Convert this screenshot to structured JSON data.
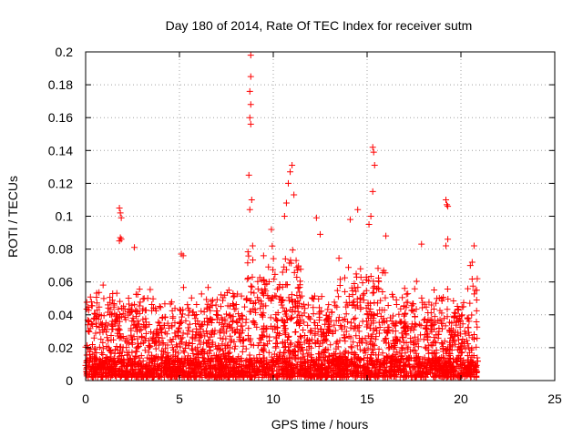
{
  "chart_data": {
    "type": "scatter",
    "title": "Day 180 of 2014, Rate Of TEC Index for receiver sutm",
    "xlabel": "GPS time / hours",
    "ylabel": "ROTI / TECUs",
    "xlim": [
      0,
      25
    ],
    "ylim": [
      0,
      0.2
    ],
    "xticks": [
      "0",
      "5",
      "10",
      "15",
      "20",
      "25"
    ],
    "yticks": [
      "0",
      "0.02",
      "0.04",
      "0.06",
      "0.08",
      "0.1",
      "0.12",
      "0.14",
      "0.16",
      "0.18",
      "0.2"
    ],
    "grid": true,
    "marker": "+",
    "color": "#ff0000",
    "data_extent_hours": [
      0,
      20.9
    ],
    "series": [
      {
        "description_points": [
          {
            "x": 1.8,
            "y": 0.105
          },
          {
            "x": 1.85,
            "y": 0.102
          },
          {
            "x": 1.9,
            "y": 0.099
          },
          {
            "x": 1.85,
            "y": 0.087
          },
          {
            "x": 1.9,
            "y": 0.086
          },
          {
            "x": 1.8,
            "y": 0.085
          },
          {
            "x": 2.6,
            "y": 0.081
          },
          {
            "x": 5.1,
            "y": 0.077
          },
          {
            "x": 5.2,
            "y": 0.076
          },
          {
            "x": 8.8,
            "y": 0.198
          },
          {
            "x": 8.8,
            "y": 0.185
          },
          {
            "x": 8.75,
            "y": 0.176
          },
          {
            "x": 8.8,
            "y": 0.168
          },
          {
            "x": 8.75,
            "y": 0.16
          },
          {
            "x": 8.8,
            "y": 0.156
          },
          {
            "x": 8.7,
            "y": 0.125
          },
          {
            "x": 8.85,
            "y": 0.11
          },
          {
            "x": 8.75,
            "y": 0.104
          },
          {
            "x": 8.9,
            "y": 0.082
          },
          {
            "x": 9.9,
            "y": 0.092
          },
          {
            "x": 11.0,
            "y": 0.131
          },
          {
            "x": 10.9,
            "y": 0.127
          },
          {
            "x": 10.8,
            "y": 0.12
          },
          {
            "x": 11.1,
            "y": 0.113
          },
          {
            "x": 10.7,
            "y": 0.108
          },
          {
            "x": 10.6,
            "y": 0.1
          },
          {
            "x": 12.3,
            "y": 0.099
          },
          {
            "x": 12.5,
            "y": 0.089
          },
          {
            "x": 14.1,
            "y": 0.098
          },
          {
            "x": 14.5,
            "y": 0.104
          },
          {
            "x": 15.3,
            "y": 0.142
          },
          {
            "x": 15.35,
            "y": 0.139
          },
          {
            "x": 15.4,
            "y": 0.131
          },
          {
            "x": 15.3,
            "y": 0.115
          },
          {
            "x": 15.2,
            "y": 0.1
          },
          {
            "x": 15.1,
            "y": 0.095
          },
          {
            "x": 16.0,
            "y": 0.088
          },
          {
            "x": 17.9,
            "y": 0.083
          },
          {
            "x": 19.2,
            "y": 0.11
          },
          {
            "x": 19.25,
            "y": 0.107
          },
          {
            "x": 19.3,
            "y": 0.106
          },
          {
            "x": 19.3,
            "y": 0.086
          },
          {
            "x": 19.2,
            "y": 0.082
          },
          {
            "x": 20.7,
            "y": 0.082
          },
          {
            "x": 20.6,
            "y": 0.072
          },
          {
            "x": 20.5,
            "y": 0.07
          }
        ],
        "dense_band": {
          "y_min": 0.002,
          "y_typical_max": 0.05,
          "x_range": [
            0,
            20.9
          ]
        }
      }
    ]
  }
}
